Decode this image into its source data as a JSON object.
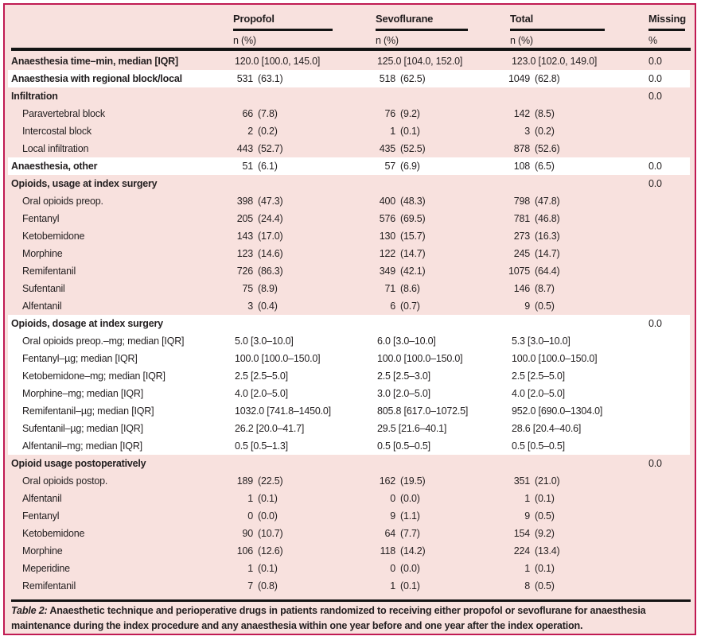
{
  "colors": {
    "panel_background": "#f8e1de",
    "panel_border": "#c01a52",
    "band_highlight": "#ffffff",
    "rule": "#141414",
    "text": "#231f20"
  },
  "table": {
    "columns": [
      {
        "label": "Propofol",
        "sub": "n (%)"
      },
      {
        "label": "Sevoflurane",
        "sub": "n (%)"
      },
      {
        "label": "Total",
        "sub": "n (%)"
      },
      {
        "label": "Missing",
        "sub": "%"
      }
    ],
    "rows": [
      {
        "label": "Anaesthesia time–min, median [IQR]",
        "bold": true,
        "type": "median",
        "values": [
          "120.0 [100.0, 145.0]",
          "125.0 [104.0, 152.0]",
          "123.0 [102.0, 149.0]"
        ],
        "missing": "0.0"
      },
      {
        "label": "Anaesthesia with regional block/local",
        "bold": true,
        "type": "count",
        "values": [
          [
            "531",
            "(63.1)"
          ],
          [
            "518",
            "(62.5)"
          ],
          [
            "1049",
            "(62.8)"
          ]
        ],
        "missing": "0.0"
      },
      {
        "label": "Infiltration",
        "bold": true,
        "missing": "0.0"
      },
      {
        "label": "Paravertebral block",
        "indent": true,
        "type": "count",
        "values": [
          [
            "66",
            "(7.8)"
          ],
          [
            "76",
            "(9.2)"
          ],
          [
            "142",
            "(8.5)"
          ]
        ]
      },
      {
        "label": "Intercostal block",
        "indent": true,
        "type": "count",
        "values": [
          [
            "2",
            "(0.2)"
          ],
          [
            "1",
            "(0.1)"
          ],
          [
            "3",
            "(0.2)"
          ]
        ]
      },
      {
        "label": "Local infiltration",
        "indent": true,
        "type": "count",
        "values": [
          [
            "443",
            "(52.7)"
          ],
          [
            "435",
            "(52.5)"
          ],
          [
            "878",
            "(52.6)"
          ]
        ]
      },
      {
        "label": "Anaesthesia, other",
        "bold": true,
        "type": "count",
        "values": [
          [
            "51",
            "(6.1)"
          ],
          [
            "57",
            "(6.9)"
          ],
          [
            "108",
            "(6.5)"
          ]
        ],
        "missing": "0.0"
      },
      {
        "label": "Opioids, usage at index surgery",
        "bold": true,
        "missing": "0.0"
      },
      {
        "label": "Oral opioids preop.",
        "indent": true,
        "type": "count",
        "values": [
          [
            "398",
            "(47.3)"
          ],
          [
            "400",
            "(48.3)"
          ],
          [
            "798",
            "(47.8)"
          ]
        ]
      },
      {
        "label": "Fentanyl",
        "indent": true,
        "type": "count",
        "values": [
          [
            "205",
            "(24.4)"
          ],
          [
            "576",
            "(69.5)"
          ],
          [
            "781",
            "(46.8)"
          ]
        ]
      },
      {
        "label": "Ketobemidone",
        "indent": true,
        "type": "count",
        "values": [
          [
            "143",
            "(17.0)"
          ],
          [
            "130",
            "(15.7)"
          ],
          [
            "273",
            "(16.3)"
          ]
        ]
      },
      {
        "label": "Morphine",
        "indent": true,
        "type": "count",
        "values": [
          [
            "123",
            "(14.6)"
          ],
          [
            "122",
            "(14.7)"
          ],
          [
            "245",
            "(14.7)"
          ]
        ]
      },
      {
        "label": "Remifentanil",
        "indent": true,
        "type": "count",
        "values": [
          [
            "726",
            "(86.3)"
          ],
          [
            "349",
            "(42.1)"
          ],
          [
            "1075",
            "(64.4)"
          ]
        ]
      },
      {
        "label": "Sufentanil",
        "indent": true,
        "type": "count",
        "values": [
          [
            "75",
            "(8.9)"
          ],
          [
            "71",
            "(8.6)"
          ],
          [
            "146",
            "(8.7)"
          ]
        ]
      },
      {
        "label": "Alfentanil",
        "indent": true,
        "type": "count",
        "values": [
          [
            "3",
            "(0.4)"
          ],
          [
            "6",
            "(0.7)"
          ],
          [
            "9",
            "(0.5)"
          ]
        ]
      },
      {
        "label": "Opioids, dosage at index surgery",
        "bold": true,
        "missing": "0.0"
      },
      {
        "label": "Oral opioids preop.–mg; median [IQR]",
        "indent": true,
        "type": "median",
        "values": [
          "5.0 [3.0–10.0]",
          "6.0 [3.0–10.0]",
          "5.3 [3.0–10.0]"
        ]
      },
      {
        "label": "Fentanyl–µg; median [IQR]",
        "indent": true,
        "type": "median",
        "values": [
          "100.0 [100.0–150.0]",
          "100.0 [100.0–150.0]",
          "100.0 [100.0–150.0]"
        ]
      },
      {
        "label": "Ketobemidone–mg; median [IQR]",
        "indent": true,
        "type": "median",
        "values": [
          "2.5 [2.5–5.0]",
          "2.5 [2.5–3.0]",
          "2.5 [2.5–5.0]"
        ]
      },
      {
        "label": "Morphine–mg; median [IQR]",
        "indent": true,
        "type": "median",
        "values": [
          "4.0 [2.0–5.0]",
          "3.0 [2.0–5.0]",
          "4.0 [2.0–5.0]"
        ]
      },
      {
        "label": "Remifentanil–µg; median [IQR]",
        "indent": true,
        "type": "median",
        "values": [
          "1032.0 [741.8–1450.0]",
          "805.8 [617.0–1072.5]",
          "952.0 [690.0–1304.0]"
        ]
      },
      {
        "label": "Sufentanil–µg; median [IQR]",
        "indent": true,
        "type": "median",
        "values": [
          "26.2 [20.0–41.7]",
          "29.5 [21.6–40.1]",
          "28.6 [20.4–40.6]"
        ]
      },
      {
        "label": "Alfentanil–mg; median [IQR]",
        "indent": true,
        "type": "median",
        "values": [
          "0.5 [0.5–1.3]",
          "0.5 [0.5–0.5]",
          "0.5 [0.5–0.5]"
        ]
      },
      {
        "label": "Opioid usage postoperatively",
        "bold": true,
        "missing": "0.0"
      },
      {
        "label": "Oral opioids postop.",
        "indent": true,
        "type": "count",
        "values": [
          [
            "189",
            "(22.5)"
          ],
          [
            "162",
            "(19.5)"
          ],
          [
            "351",
            "(21.0)"
          ]
        ]
      },
      {
        "label": "Alfentanil",
        "indent": true,
        "type": "count",
        "values": [
          [
            "1",
            "(0.1)"
          ],
          [
            "0",
            "(0.0)"
          ],
          [
            "1",
            "(0.1)"
          ]
        ]
      },
      {
        "label": "Fentanyl",
        "indent": true,
        "type": "count",
        "values": [
          [
            "0",
            "(0.0)"
          ],
          [
            "9",
            "(1.1)"
          ],
          [
            "9",
            "(0.5)"
          ]
        ]
      },
      {
        "label": "Ketobemidone",
        "indent": true,
        "type": "count",
        "values": [
          [
            "90",
            "(10.7)"
          ],
          [
            "64",
            "(7.7)"
          ],
          [
            "154",
            "(9.2)"
          ]
        ]
      },
      {
        "label": "Morphine",
        "indent": true,
        "type": "count",
        "values": [
          [
            "106",
            "(12.6)"
          ],
          [
            "118",
            "(14.2)"
          ],
          [
            "224",
            "(13.4)"
          ]
        ]
      },
      {
        "label": "Meperidine",
        "indent": true,
        "type": "count",
        "values": [
          [
            "1",
            "(0.1)"
          ],
          [
            "0",
            "(0.0)"
          ],
          [
            "1",
            "(0.1)"
          ]
        ]
      },
      {
        "label": "Remifentanil",
        "indent": true,
        "type": "count",
        "values": [
          [
            "7",
            "(0.8)"
          ],
          [
            "1",
            "(0.1)"
          ],
          [
            "8",
            "(0.5)"
          ]
        ]
      }
    ]
  },
  "caption": {
    "prefix": "Table 2:",
    "text": "Anaesthetic technique and perioperative drugs in patients randomized to receiving either propofol or sevoflurane for anaesthesia maintenance during the index procedure and any anaesthesia within one year before and one year after the index operation."
  }
}
